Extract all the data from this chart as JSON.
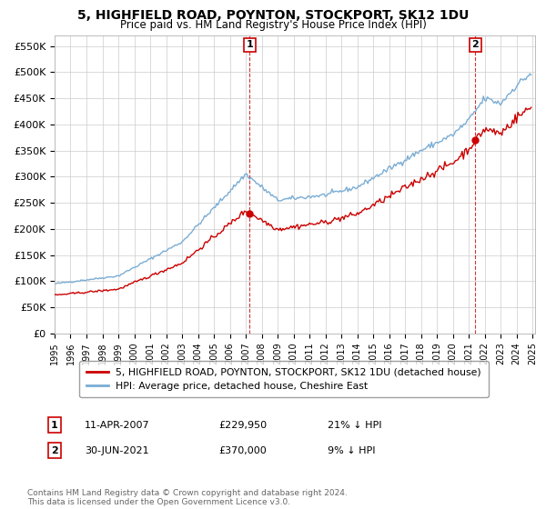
{
  "title": "5, HIGHFIELD ROAD, POYNTON, STOCKPORT, SK12 1DU",
  "subtitle": "Price paid vs. HM Land Registry's House Price Index (HPI)",
  "legend_red": "5, HIGHFIELD ROAD, POYNTON, STOCKPORT, SK12 1DU (detached house)",
  "legend_blue": "HPI: Average price, detached house, Cheshire East",
  "annotation1_label": "1",
  "annotation1_date": "11-APR-2007",
  "annotation1_price": "£229,950",
  "annotation1_pct": "21% ↓ HPI",
  "annotation2_label": "2",
  "annotation2_date": "30-JUN-2021",
  "annotation2_price": "£370,000",
  "annotation2_pct": "9% ↓ HPI",
  "footer": "Contains HM Land Registry data © Crown copyright and database right 2024.\nThis data is licensed under the Open Government Licence v3.0.",
  "red_color": "#cc0000",
  "blue_color": "#7aadd4",
  "background_color": "#ffffff",
  "grid_color": "#cccccc",
  "ylim": [
    0,
    570000
  ],
  "yticks": [
    0,
    50000,
    100000,
    150000,
    200000,
    250000,
    300000,
    350000,
    400000,
    450000,
    500000,
    550000
  ],
  "ytick_labels": [
    "£0",
    "£50K",
    "£100K",
    "£150K",
    "£200K",
    "£250K",
    "£300K",
    "£350K",
    "£400K",
    "£450K",
    "£500K",
    "£550K"
  ],
  "sale1_price": 229950,
  "sale2_price": 370000,
  "sale1_year": 2007,
  "sale1_month": 4,
  "sale2_year": 2021,
  "sale2_month": 6
}
